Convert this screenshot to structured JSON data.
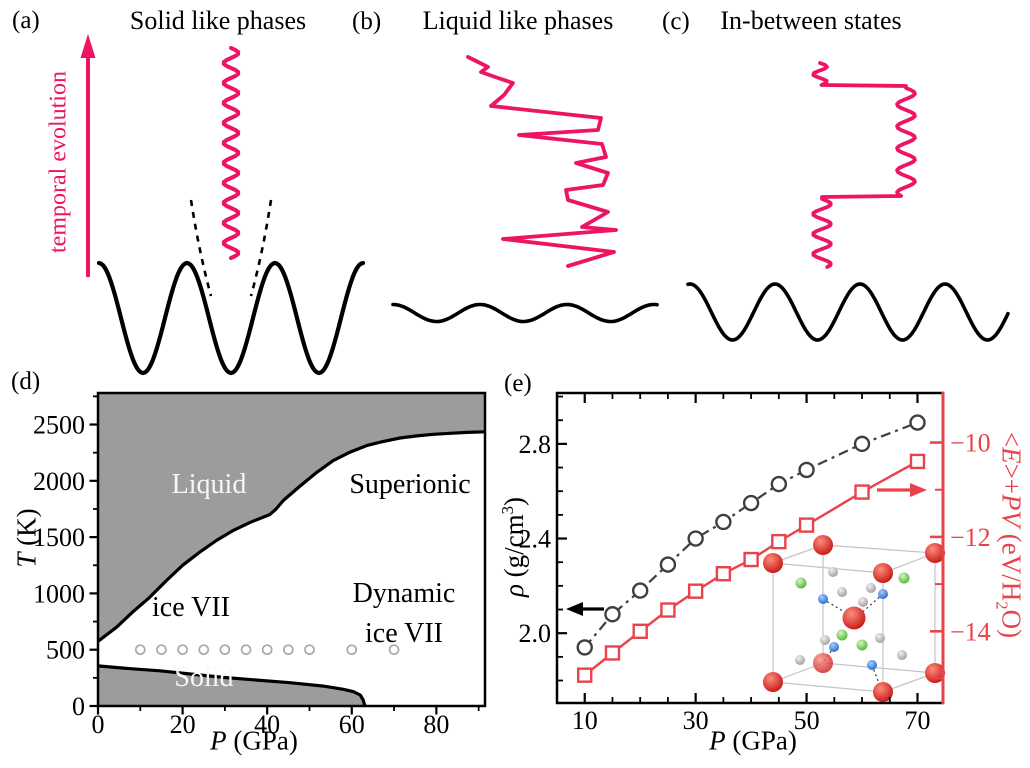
{
  "panels": {
    "a": {
      "label": "(a)",
      "title": "Solid like phases",
      "arrow_label": "temporal evolution"
    },
    "b": {
      "label": "(b)",
      "title": "Liquid like phases"
    },
    "c": {
      "label": "(c)",
      "title": "In-between states"
    },
    "d": {
      "label": "(d)",
      "regions": {
        "liquid": "Liquid",
        "superionic": "Superionic",
        "ice7": "ice VII",
        "dynamic1": "Dynamic",
        "dynamic2": "ice VII",
        "solid": "Solid"
      },
      "xlabel_var": "P",
      "xlabel_rest": " (GPa)",
      "ylabel_var": "T",
      "ylabel_rest": " (K)"
    },
    "e": {
      "label": "(e)",
      "xlabel_var": "P",
      "xlabel_rest": " (GPa)",
      "yl_var": "ρ",
      "yl_mid": " (g/cm",
      "yl_sup": "3",
      "yl_end": ")",
      "yr_a": "<",
      "yr_E": "E",
      "yr_b": ">+",
      "yr_P": "P",
      "yr_V": "V",
      "yr_c": " (eV/H",
      "yr_sub": "2",
      "yr_d": "O)"
    }
  },
  "colors": {
    "pink": "#ee1464",
    "red": "#e8434b",
    "dark_gray_series": "#3f3f3f",
    "phase_gray": "#9c9c9c",
    "marker_gray": "#a9a9a9",
    "white_label": "#f7f7f7",
    "cube_edge": "#c4c4c4",
    "sphere_red": "#c31212",
    "sphere_gray": "#9a9a9a",
    "sphere_green": "#49b32c",
    "sphere_blue": "#1f66d0"
  },
  "chart_data": [
    {
      "type": "line",
      "panel": "d",
      "title": "Phase diagram of water ice",
      "xlabel": "P (GPa)",
      "ylabel": "T (K)",
      "xlim": [
        0,
        91.5
      ],
      "ylim": [
        0,
        2780
      ],
      "x_ticks": [
        0,
        20,
        40,
        60,
        80
      ],
      "x_minor_ticks": [
        10,
        30,
        50,
        70,
        90
      ],
      "y_ticks": [
        0,
        500,
        1000,
        1500,
        2000,
        2500
      ],
      "y_minor_ticks": [
        250,
        750,
        1250,
        1750,
        2250,
        2750
      ],
      "grid": false,
      "regions": [
        "Liquid",
        "Superionic",
        "ice VII",
        "Dynamic ice VII",
        "Solid"
      ],
      "series": [
        {
          "name": "melting-line",
          "points": [
            [
              0,
              575
            ],
            [
              4.4,
              700
            ],
            [
              8.2,
              835
            ],
            [
              12.2,
              965
            ],
            [
              16.2,
              1115
            ],
            [
              20,
              1250
            ],
            [
              24,
              1365
            ],
            [
              28,
              1470
            ],
            [
              32,
              1560
            ],
            [
              36,
              1632
            ],
            [
              40.6,
              1700
            ],
            [
              42,
              1745
            ],
            [
              43.8,
              1825
            ],
            [
              47.7,
              1950
            ],
            [
              51.7,
              2075
            ],
            [
              55.6,
              2180
            ],
            [
              59.6,
              2255
            ],
            [
              63.5,
              2313
            ],
            [
              67.5,
              2350
            ],
            [
              71.4,
              2380
            ],
            [
              75.4,
              2399
            ],
            [
              79.3,
              2413
            ],
            [
              83.3,
              2422
            ],
            [
              87.2,
              2430
            ],
            [
              91.5,
              2435
            ]
          ]
        },
        {
          "name": "solid-boundary",
          "points": [
            [
              0,
              356
            ],
            [
              6.7,
              334
            ],
            [
              14.6,
              313
            ],
            [
              29.6,
              254
            ],
            [
              45.4,
              207
            ],
            [
              53.3,
              177
            ],
            [
              58,
              148
            ],
            [
              60.4,
              127
            ],
            [
              62,
              98
            ],
            [
              62.7,
              53
            ],
            [
              63.1,
              0
            ]
          ]
        },
        {
          "name": "simulation-state-points",
          "marker": "circle",
          "T": 500,
          "P": [
            10,
            15,
            20,
            25,
            30,
            35,
            40,
            45,
            50,
            60,
            70
          ]
        }
      ]
    },
    {
      "type": "line",
      "panel": "e",
      "xlabel": "P (GPa)",
      "ylabel_left": "ρ (g/cm³)",
      "ylabel_right": "<E>+PV (eV/H₂O)",
      "xlim": [
        5,
        74.6
      ],
      "x_ticks": [
        10,
        30,
        50,
        70
      ],
      "x_minor_ticks": [
        15,
        20,
        25,
        35,
        40,
        45,
        55,
        60,
        65
      ],
      "ylim_left": [
        1.705,
        3.015
      ],
      "y_ticks_left": [
        "2.0",
        "2.4",
        "2.8"
      ],
      "y_minor_ticks_left": [
        1.8,
        1.9,
        2.1,
        2.2,
        2.3,
        2.5,
        2.6,
        2.7,
        2.9,
        3.0
      ],
      "ylim_right": [
        -15.52,
        -8.95
      ],
      "y_ticks_right": [
        -10,
        -12,
        -14
      ],
      "y_minor_ticks_right": [
        -15,
        -13,
        -11
      ],
      "grid": false,
      "legend": "none",
      "series": [
        {
          "name": "density",
          "axis": "left",
          "marker": "circle",
          "linestyle": "dashdot",
          "x": [
            10,
            15,
            20,
            25,
            30,
            35,
            40,
            45,
            50,
            60,
            70
          ],
          "y": [
            1.94,
            2.08,
            2.18,
            2.29,
            2.4,
            2.47,
            2.55,
            2.63,
            2.69,
            2.8,
            2.89
          ]
        },
        {
          "name": "enthalpy",
          "axis": "right",
          "marker": "square",
          "linestyle": "solid",
          "x": [
            10,
            15,
            20,
            25,
            30,
            35,
            40,
            45,
            50,
            60,
            70
          ],
          "y": [
            -14.93,
            -14.46,
            -14.0,
            -13.55,
            -13.15,
            -12.78,
            -12.48,
            -12.1,
            -11.75,
            -11.05,
            -10.4
          ]
        }
      ]
    }
  ]
}
